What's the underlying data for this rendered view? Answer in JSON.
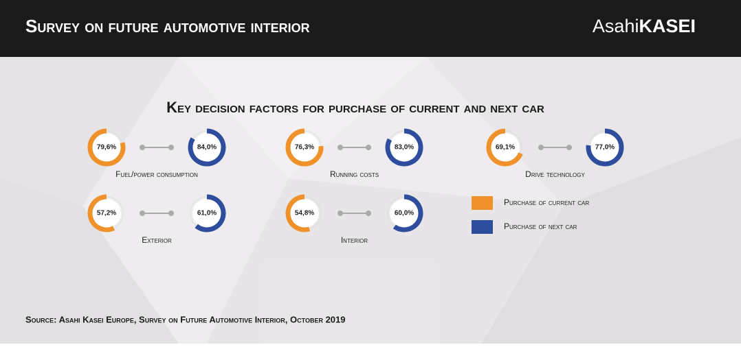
{
  "header": {
    "title": "Survey on future automotive interior",
    "logo_light": "Asahi",
    "logo_bold": "KASEI"
  },
  "chart_data": {
    "type": "donut",
    "title": "Key decision factors for purchase of current and next car",
    "categories": [
      "Fuel/power consumption",
      "Running costs",
      "Drive technology",
      "Exterior",
      "Interior"
    ],
    "series": [
      {
        "name": "Purchase of current car",
        "color": "#f0922b",
        "values": [
          79.6,
          76.3,
          69.1,
          57.2,
          54.8
        ],
        "value_labels": [
          "79,6%",
          "76,3%",
          "69,1%",
          "57,2%",
          "54,8%"
        ]
      },
      {
        "name": "Purchase of next car",
        "color": "#2e4d9c",
        "values": [
          84.0,
          83.0,
          77.0,
          61.0,
          60.0
        ],
        "value_labels": [
          "84,0%",
          "83,0%",
          "77,0%",
          "61,0%",
          "60,0%"
        ]
      }
    ]
  },
  "footer": {
    "source": "Source: Asahi Kasei Europe, Survey on Future Automotive Interior, October 2019"
  }
}
